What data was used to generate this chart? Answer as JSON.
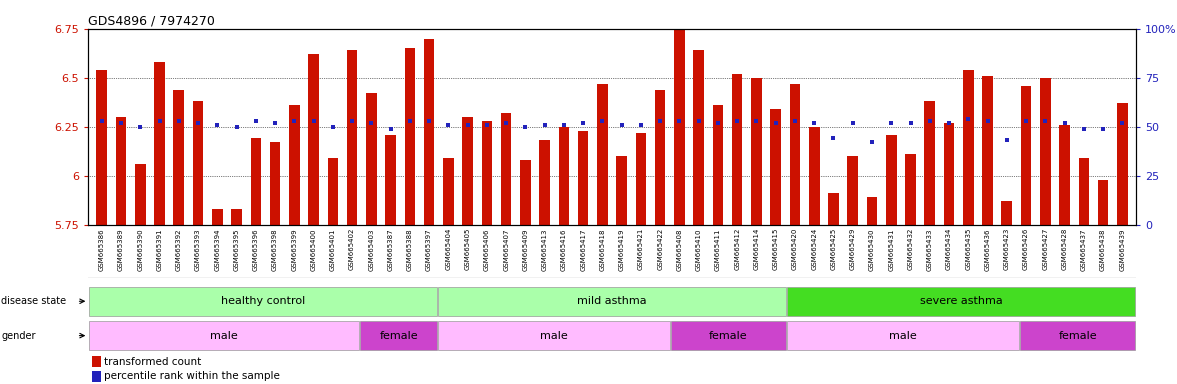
{
  "title": "GDS4896 / 7974270",
  "samples": [
    "GSM665386",
    "GSM665389",
    "GSM665390",
    "GSM665391",
    "GSM665392",
    "GSM665393",
    "GSM665394",
    "GSM665395",
    "GSM665396",
    "GSM665398",
    "GSM665399",
    "GSM665400",
    "GSM665401",
    "GSM665402",
    "GSM665403",
    "GSM665387",
    "GSM665388",
    "GSM665397",
    "GSM665404",
    "GSM665405",
    "GSM665406",
    "GSM665407",
    "GSM665409",
    "GSM665413",
    "GSM665416",
    "GSM665417",
    "GSM665418",
    "GSM665419",
    "GSM665421",
    "GSM665422",
    "GSM665408",
    "GSM665410",
    "GSM665411",
    "GSM665412",
    "GSM665414",
    "GSM665415",
    "GSM665420",
    "GSM665424",
    "GSM665425",
    "GSM665429",
    "GSM665430",
    "GSM665431",
    "GSM665432",
    "GSM665433",
    "GSM665434",
    "GSM665435",
    "GSM665436",
    "GSM665423",
    "GSM665426",
    "GSM665427",
    "GSM665428",
    "GSM665437",
    "GSM665438",
    "GSM665439"
  ],
  "bar_values": [
    6.54,
    6.3,
    6.06,
    6.58,
    6.44,
    6.38,
    5.83,
    5.83,
    6.19,
    6.17,
    6.36,
    6.62,
    6.09,
    6.64,
    6.42,
    6.21,
    6.65,
    6.7,
    6.09,
    6.3,
    6.28,
    6.32,
    6.08,
    6.18,
    6.25,
    6.23,
    6.47,
    6.1,
    6.22,
    6.44,
    6.78,
    6.64,
    6.36,
    6.52,
    6.5,
    6.34,
    6.47,
    6.25,
    5.91,
    6.1,
    5.89,
    6.21,
    6.11,
    6.38,
    6.27,
    6.54,
    6.51,
    5.87,
    6.46,
    6.5,
    6.26,
    6.09,
    5.98,
    6.37
  ],
  "percentile_values": [
    53,
    52,
    50,
    53,
    53,
    52,
    51,
    50,
    53,
    52,
    53,
    53,
    50,
    53,
    52,
    49,
    53,
    53,
    51,
    51,
    51,
    52,
    50,
    51,
    51,
    52,
    53,
    51,
    51,
    53,
    53,
    53,
    52,
    53,
    53,
    52,
    53,
    52,
    44,
    52,
    42,
    52,
    52,
    53,
    52,
    54,
    53,
    43,
    53,
    53,
    52,
    49,
    49,
    52
  ],
  "ylim_left": [
    5.75,
    6.75
  ],
  "ylim_right": [
    0,
    100
  ],
  "yticks_left": [
    5.75,
    6.0,
    6.25,
    6.5,
    6.75
  ],
  "ytick_labels_left": [
    "5.75",
    "6",
    "6.25",
    "6.5",
    "6.75"
  ],
  "yticks_right": [
    0,
    25,
    50,
    75,
    100
  ],
  "ytick_labels_right": [
    "0",
    "25",
    "50",
    "75",
    "100%"
  ],
  "bar_color": "#cc1100",
  "dot_color": "#2222bb",
  "bar_bottom": 5.75,
  "ds_colors": [
    "#aaffaa",
    "#aaffaa",
    "#44dd22"
  ],
  "ds_labels": [
    "healthy control",
    "mild asthma",
    "severe asthma"
  ],
  "ds_ranges": [
    [
      0,
      18
    ],
    [
      18,
      36
    ],
    [
      36,
      54
    ]
  ],
  "g_colors_male": "#ffbbff",
  "g_colors_female": "#cc44cc",
  "g_ranges": [
    [
      0,
      14
    ],
    [
      14,
      18
    ],
    [
      18,
      30
    ],
    [
      30,
      36
    ],
    [
      36,
      48
    ],
    [
      48,
      54
    ]
  ],
  "g_labels": [
    "male",
    "female",
    "male",
    "female",
    "male",
    "female"
  ],
  "background_color": "#ffffff",
  "title_fontsize": 9,
  "annot_fontsize": 8,
  "tick_fontsize": 8
}
